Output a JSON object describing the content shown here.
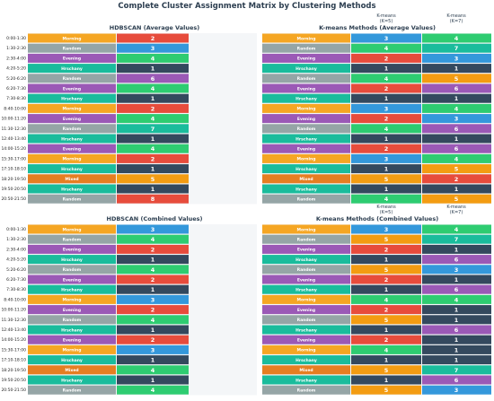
{
  "title": "Complete Cluster Assignment Matrix by Clustering Methods",
  "colors": {
    "Morning": "#f5a623",
    "Random": "#95a5a6",
    "Evening": "#9b59b6",
    "Hrschany": "#1abc9c",
    "Mixed": "#e67e22",
    "c1": "#34495e",
    "c2": "#e74c3c",
    "c3": "#3498db",
    "c4": "#2ecc71",
    "c5": "#f39c12",
    "c6": "#9b59b6",
    "c7": "#1abc9c",
    "c8": "#e74c3c"
  },
  "chart_data": [
    {
      "type": "table",
      "title": "HDBSCAN (Average Values)",
      "rows": [
        "0:00-1:30",
        "1:30-2:30",
        "2:30-4:00",
        "4:20-5:20",
        "5:20-6:20",
        "6:20-7:30",
        "7:30-8:30",
        "8:40-10:00",
        "10:00-11:20",
        "11:30-12:30",
        "12:40-13:40",
        "14:00-15:20",
        "15:30-17:00",
        "17:10-18:10",
        "18:20-19:50",
        "19:50-20:50",
        "20:50-21:50"
      ],
      "labels": [
        "Morning",
        "Random",
        "Evening",
        "Hrschany",
        "Random",
        "Evening",
        "Hrschany",
        "Morning",
        "Evening",
        "Random",
        "Hrschany",
        "Evening",
        "Morning",
        "Hrschany",
        "Mixed",
        "Hrschany",
        "Random"
      ],
      "values": [
        2,
        3,
        4,
        1,
        6,
        4,
        1,
        2,
        4,
        7,
        1,
        4,
        2,
        1,
        5,
        1,
        8
      ]
    },
    {
      "type": "table",
      "title": "K-means Methods (Average Values)",
      "columns": [
        "K-means\n(K=5)",
        "K-means\n(K=7)"
      ],
      "labels": [
        "Morning",
        "Random",
        "Evening",
        "Hrschany",
        "Random",
        "Evening",
        "Hrschany",
        "Morning",
        "Evening",
        "Random",
        "Hrschany",
        "Evening",
        "Morning",
        "Hrschany",
        "Mixed",
        "Hrschany",
        "Random"
      ],
      "values_k5": [
        3,
        4,
        2,
        1,
        4,
        2,
        1,
        3,
        2,
        4,
        1,
        2,
        3,
        1,
        5,
        1,
        4
      ],
      "values_k7": [
        4,
        7,
        3,
        1,
        5,
        6,
        1,
        4,
        3,
        6,
        1,
        6,
        4,
        5,
        2,
        1,
        5
      ]
    },
    {
      "type": "table",
      "title": "HDBSCAN (Combined Values)",
      "rows": [
        "0:00-1:30",
        "1:30-2:30",
        "2:30-4:00",
        "4:20-5:20",
        "5:20-6:20",
        "6:20-7:30",
        "7:30-8:30",
        "8:40-10:00",
        "10:00-11:20",
        "11:30-12:30",
        "12:40-13:40",
        "14:00-15:20",
        "15:30-17:00",
        "17:10-18:10",
        "18:20-19:50",
        "19:50-20:50",
        "20:50-21:50"
      ],
      "labels": [
        "Morning",
        "Random",
        "Evening",
        "Hrschany",
        "Random",
        "Evening",
        "Hrschany",
        "Morning",
        "Evening",
        "Random",
        "Hrschany",
        "Evening",
        "Morning",
        "Hrschany",
        "Mixed",
        "Hrschany",
        "Random"
      ],
      "values": [
        3,
        4,
        2,
        1,
        4,
        2,
        1,
        3,
        2,
        4,
        1,
        2,
        3,
        1,
        4,
        1,
        4
      ]
    },
    {
      "type": "table",
      "title": "K-means Methods (Combined Values)",
      "columns": [
        "K-means\n(K=5)",
        "K-means\n(K=7)"
      ],
      "labels": [
        "Morning",
        "Random",
        "Evening",
        "Hrschany",
        "Random",
        "Evening",
        "Hrschany",
        "Morning",
        "Evening",
        "Random",
        "Hrschany",
        "Evening",
        "Morning",
        "Hrschany",
        "Mixed",
        "Hrschany",
        "Random"
      ],
      "values_k5": [
        3,
        5,
        2,
        1,
        5,
        2,
        1,
        4,
        2,
        5,
        1,
        2,
        4,
        1,
        5,
        1,
        5
      ],
      "values_k7": [
        4,
        7,
        1,
        6,
        3,
        1,
        6,
        4,
        1,
        1,
        6,
        1,
        1,
        1,
        7,
        6,
        3
      ]
    }
  ]
}
